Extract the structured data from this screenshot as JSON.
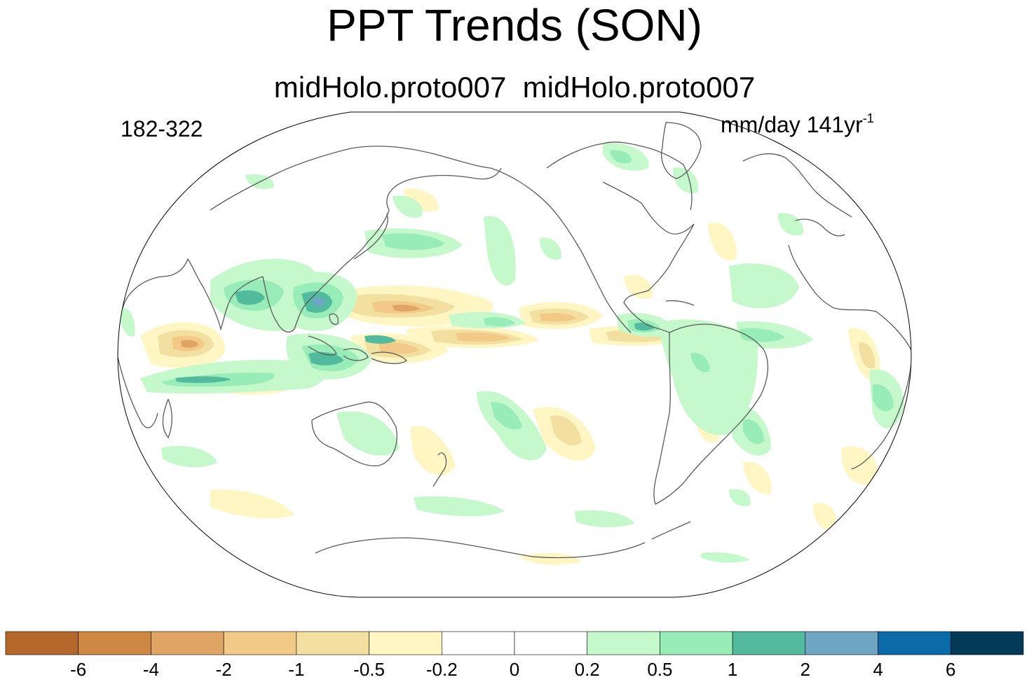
{
  "title": "PPT Trends (SON)",
  "subtitle": "midHolo.proto007  midHolo.proto007",
  "left_label": "182-322",
  "units": {
    "text": "mm/day 141yr",
    "superscript": "-1"
  },
  "colors": {
    "coastline": "#5a5a5a",
    "border": "#000000"
  },
  "colorbar": {
    "colors": [
      "#b5682c",
      "#cf8843",
      "#e0a564",
      "#f3c987",
      "#f3e0a0",
      "#fff6c3",
      "#ffffff",
      "#ffffff",
      "#c5f8cb",
      "#98ecb8",
      "#52bb9d",
      "#6fa6c6",
      "#0b6aa8",
      "#043957"
    ],
    "labels": [
      "-6",
      "-4",
      "-2",
      "-1",
      "-0.5",
      "-0.2",
      "0",
      "0.2",
      "0.5",
      "1",
      "2",
      "4",
      "6"
    ]
  }
}
